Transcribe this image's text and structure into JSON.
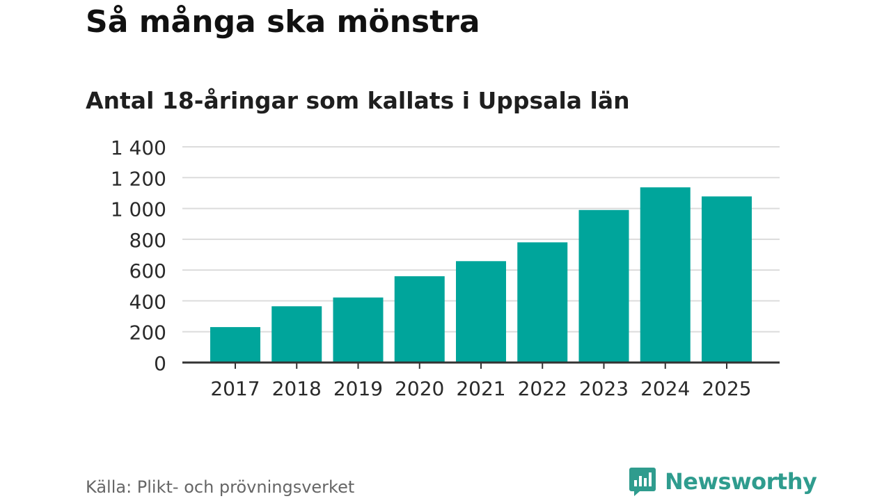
{
  "header": {
    "title": "Så många ska mönstra",
    "subtitle": "Antal 18-åringar som kallats i Uppsala län"
  },
  "footer": {
    "source": "Källa: Plikt- och prövningsverket",
    "brand": "Newsworthy",
    "brand_icon": "newsworthy-logo-icon"
  },
  "colors": {
    "bar": "#00a59b",
    "grid": "#dcdcdc",
    "axis": "#333333",
    "brand": "#2f9c8e"
  },
  "chart_data": {
    "type": "bar",
    "categories": [
      "2017",
      "2018",
      "2019",
      "2020",
      "2021",
      "2022",
      "2023",
      "2024",
      "2025"
    ],
    "values": [
      230,
      365,
      422,
      560,
      658,
      780,
      990,
      1137,
      1078
    ],
    "ylim": [
      0,
      1400
    ],
    "yticks": [
      0,
      200,
      400,
      600,
      800,
      1000,
      1200,
      1400
    ],
    "ytick_labels": [
      "0",
      "200",
      "400",
      "600",
      "800",
      "1 000",
      "1 200",
      "1 400"
    ],
    "grid": true,
    "title": "Så många ska mönstra",
    "subtitle": "Antal 18-åringar som kallats i Uppsala län",
    "xlabel": "",
    "ylabel": ""
  }
}
